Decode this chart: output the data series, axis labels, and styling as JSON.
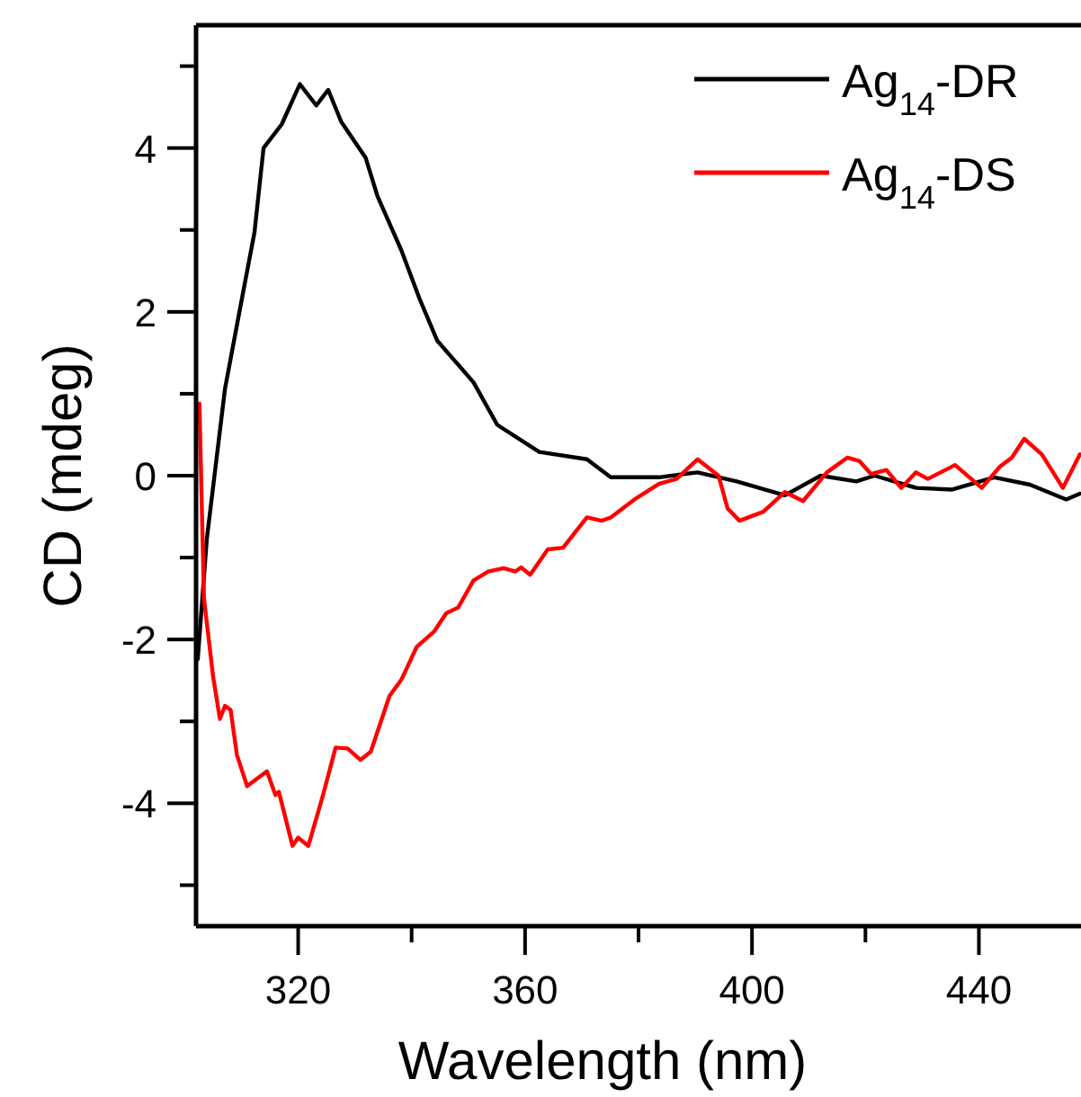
{
  "chart_data": {
    "type": "line",
    "xlabel": "Wavelength (nm)",
    "ylabel": "CD (mdeg)",
    "xlim": [
      302,
      458
    ],
    "ylim": [
      -5.5,
      5.5
    ],
    "xticks": [
      320,
      {
        "value": 340,
        "label": null
      },
      360,
      {
        "value": 380,
        "label": null
      },
      400,
      {
        "value": 420,
        "label": null
      },
      440
    ],
    "yticks": [
      {
        "value": -5,
        "label": null
      },
      -4,
      {
        "value": -3,
        "label": null
      },
      -2,
      {
        "value": -1,
        "label": null
      },
      0,
      {
        "value": 1,
        "label": null
      },
      2,
      {
        "value": 3,
        "label": null
      },
      4,
      {
        "value": 5,
        "label": null
      }
    ],
    "legend": "top right",
    "grid": false,
    "line_style": "solid",
    "marker": "none",
    "series": [
      {
        "name": "Ag$_{14}$-DR",
        "color": "#000000",
        "x": [
          302.3,
          303.9,
          307.1,
          309.7,
          312.3,
          313.9,
          317.1,
          320.3,
          323.2,
          325.3,
          327.6,
          331.9,
          334,
          338.2,
          341.4,
          344.5,
          350.9,
          355.1,
          362.5,
          370.9,
          375.1,
          383.6,
          390.4,
          397.3,
          405.8,
          412.1,
          418.4,
          421.6,
          429,
          435.3,
          442.7,
          449,
          455.4,
          457.8
        ],
        "values": [
          -2.24,
          -0.77,
          1.06,
          2.02,
          2.97,
          4.0,
          4.29,
          4.78,
          4.52,
          4.71,
          4.32,
          3.88,
          3.41,
          2.75,
          2.16,
          1.65,
          1.14,
          0.62,
          0.29,
          0.2,
          -0.02,
          -0.02,
          0.04,
          -0.07,
          -0.24,
          0,
          -0.07,
          0,
          -0.15,
          -0.17,
          -0.02,
          -0.11,
          -0.29,
          -0.22
        ]
      },
      {
        "name": "Ag$_{14}$-DS",
        "color": "#ff0000",
        "x": [
          302.6,
          302.9,
          303.4,
          305,
          306.2,
          307.1,
          308.1,
          309.2,
          311,
          314.5,
          316,
          316.6,
          319,
          320,
          321.8,
          324.3,
          326.6,
          328.7,
          331,
          332.8,
          336.1,
          338.2,
          340.9,
          344,
          346.1,
          348.2,
          350.9,
          353.5,
          356.2,
          358.3,
          359.3,
          360.9,
          364,
          366.7,
          370.9,
          373.5,
          375.1,
          379.3,
          383.6,
          386.7,
          390.4,
          394.1,
          395.7,
          397.8,
          402,
          405.8,
          409,
          413.2,
          416.8,
          418.9,
          421,
          423.7,
          426.3,
          428.9,
          431,
          435.8,
          440.5,
          443.7,
          445.8,
          448,
          451.1,
          454.8,
          457.8
        ],
        "values": [
          0.88,
          -0.04,
          -1.5,
          -2.45,
          -2.97,
          -2.81,
          -2.86,
          -3.41,
          -3.79,
          -3.61,
          -3.9,
          -3.86,
          -4.52,
          -4.42,
          -4.52,
          -3.92,
          -3.32,
          -3.33,
          -3.47,
          -3.37,
          -2.69,
          -2.49,
          -2.09,
          -1.9,
          -1.68,
          -1.61,
          -1.28,
          -1.17,
          -1.13,
          -1.17,
          -1.12,
          -1.21,
          -0.9,
          -0.88,
          -0.51,
          -0.55,
          -0.51,
          -0.29,
          -0.1,
          -0.04,
          0.2,
          0,
          -0.4,
          -0.55,
          -0.44,
          -0.2,
          -0.31,
          0.04,
          0.22,
          0.18,
          0.02,
          0.07,
          -0.15,
          0.04,
          -0.04,
          0.13,
          -0.15,
          0.11,
          0.22,
          0.45,
          0.26,
          -0.15,
          0.26
        ]
      }
    ]
  }
}
